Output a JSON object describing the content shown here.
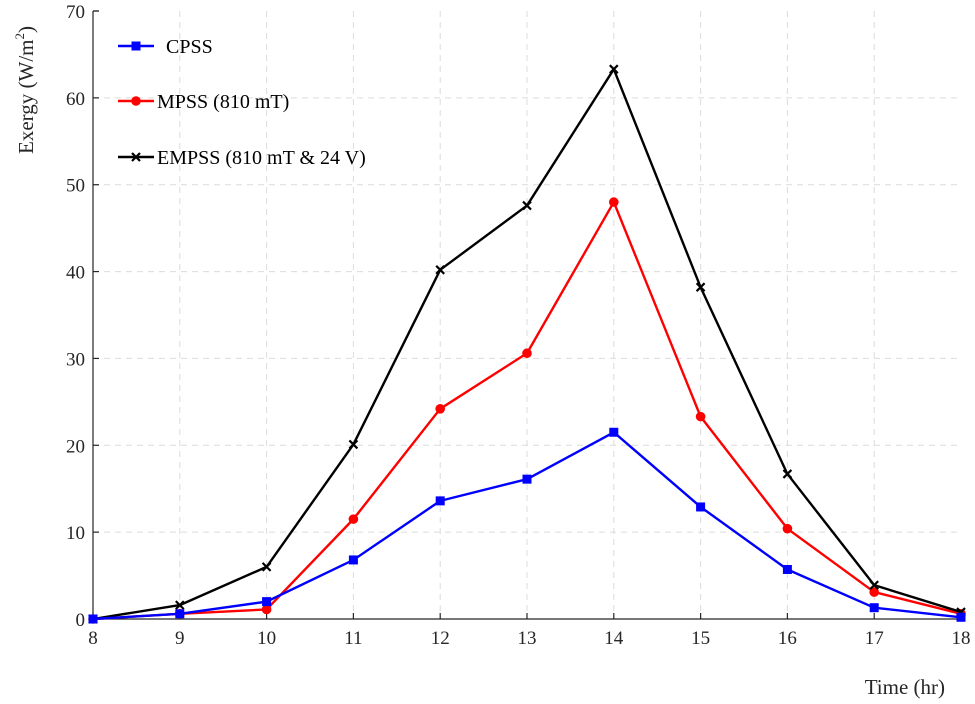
{
  "chart_data": {
    "type": "line",
    "title": "",
    "xlabel": "Time (hr)",
    "ylabel": "Exergy (W/m",
    "ylabel_superscript": "2",
    "ylabel_close": ")",
    "x": [
      8,
      9,
      10,
      11,
      12,
      13,
      14,
      15,
      16,
      17,
      18
    ],
    "xlim": [
      8,
      18
    ],
    "ylim": [
      0,
      70
    ],
    "xticks": [
      "8",
      "9",
      "10",
      "11",
      "12",
      "13",
      "14",
      "15",
      "16",
      "17",
      "18"
    ],
    "yticks": [
      "0",
      "10",
      "20",
      "30",
      "40",
      "50",
      "60",
      "70"
    ],
    "grid": true,
    "legend_position": "top-left",
    "series": [
      {
        "name": "CPSS",
        "color": "#0000ff",
        "marker": "square",
        "values": [
          0,
          0.6,
          2.0,
          6.8,
          13.6,
          16.1,
          21.5,
          12.9,
          5.7,
          1.3,
          0.2
        ]
      },
      {
        "name": "MPSS (810 mT)",
        "color": "#ff0000",
        "marker": "circle",
        "values": [
          0,
          0.6,
          1.1,
          11.5,
          24.2,
          30.6,
          48.0,
          23.3,
          10.4,
          3.1,
          0.6
        ]
      },
      {
        "name": "EMPSS (810 mT & 24 V)",
        "color": "#000000",
        "marker": "x",
        "values": [
          0,
          1.6,
          6.0,
          20.1,
          40.2,
          47.6,
          63.3,
          38.2,
          16.7,
          3.9,
          0.8
        ]
      }
    ]
  }
}
